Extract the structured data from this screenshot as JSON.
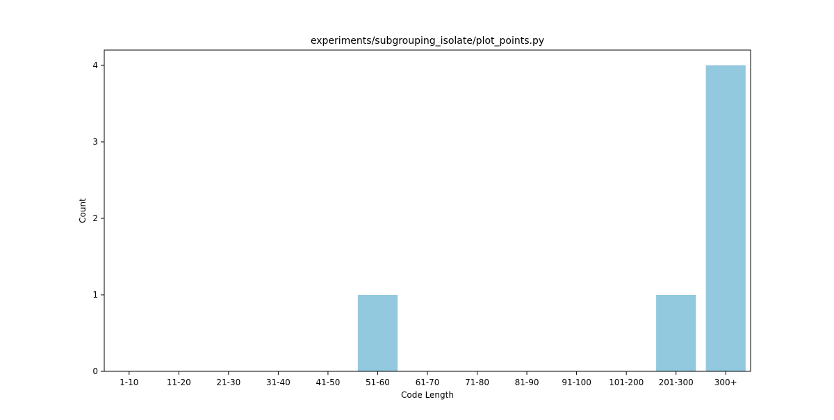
{
  "chart_data": {
    "type": "bar",
    "title": "experiments/subgrouping_isolate/plot_points.py",
    "xlabel": "Code Length",
    "ylabel": "Count",
    "categories": [
      "1-10",
      "11-20",
      "21-30",
      "31-40",
      "41-50",
      "51-60",
      "61-70",
      "71-80",
      "81-90",
      "91-100",
      "101-200",
      "201-300",
      "300+"
    ],
    "values": [
      0,
      0,
      0,
      0,
      0,
      1,
      0,
      0,
      0,
      0,
      0,
      1,
      4
    ],
    "ylim": [
      0,
      4.2
    ],
    "yticks": [
      "0",
      "1",
      "2",
      "3",
      "4"
    ],
    "grid": false,
    "bar_color": "#92c9df"
  }
}
